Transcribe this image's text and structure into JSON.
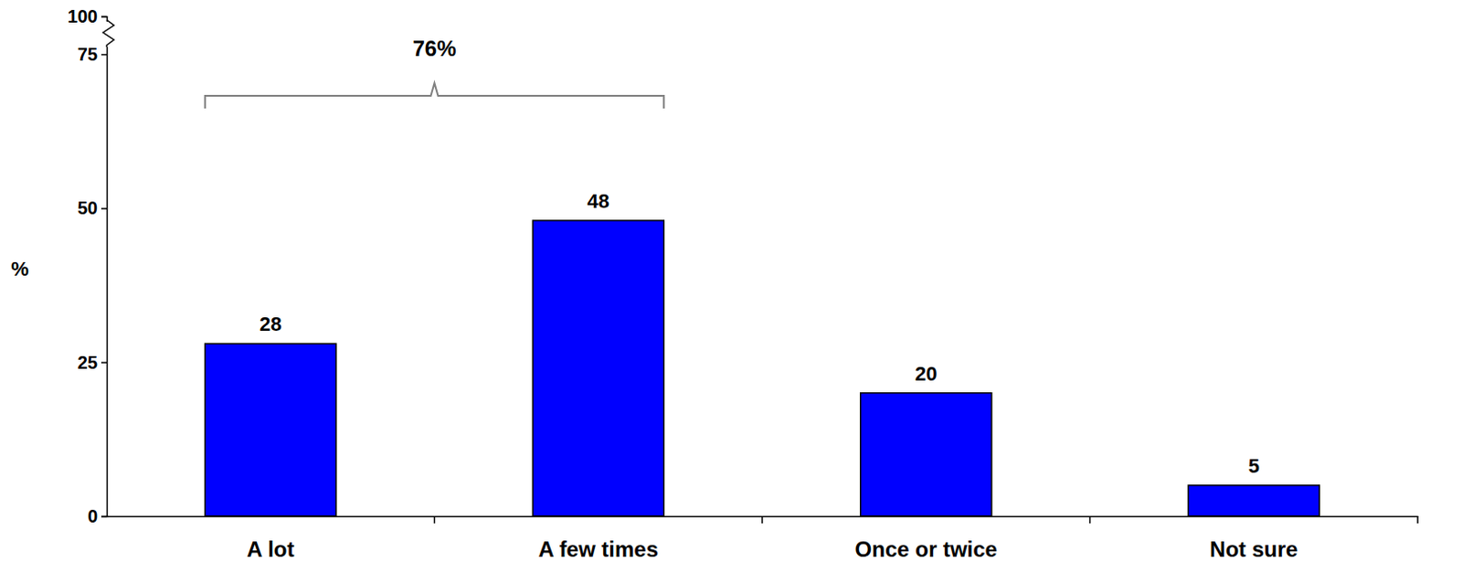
{
  "chart_data": {
    "type": "bar",
    "y_label": "%",
    "categories": [
      "A lot",
      "A few times",
      "Once or twice",
      "Not sure"
    ],
    "values": [
      28,
      48,
      20,
      5
    ],
    "color": "#0000ff",
    "ylim": [
      0,
      100
    ],
    "yticks": [
      0,
      25,
      50,
      75,
      100
    ],
    "grid": false,
    "data_labels": true,
    "annotations": [
      {
        "text": "76%",
        "categories": [
          "A lot",
          "A few times"
        ]
      }
    ]
  }
}
